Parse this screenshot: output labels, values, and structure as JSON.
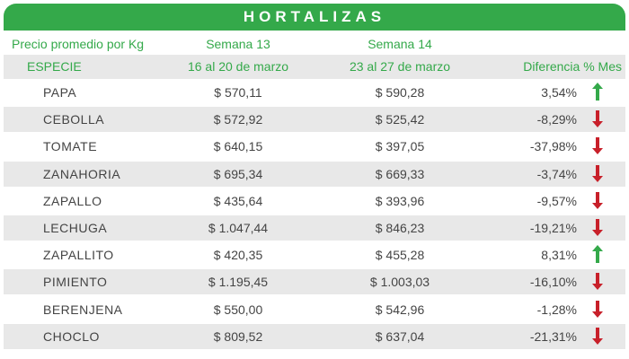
{
  "title": "HORTALIZAS",
  "subheader": {
    "label": "Precio promedio por Kg",
    "week1": "Semana 13",
    "week2": "Semana 14"
  },
  "columns": {
    "species": "ESPECIE",
    "week1_range": "16 al 20 de marzo",
    "week2_range": "23 al 27 de marzo",
    "diff": "Diferencia % Mes"
  },
  "colors": {
    "accent": "#34a94a",
    "up": "#34a94a",
    "down": "#c8202a",
    "row_alt": "#e8e8e8"
  },
  "rows": [
    {
      "species": "PAPA",
      "w13": "$ 570,11",
      "w14": "$ 590,28",
      "diff": "3,54%",
      "trend": "up"
    },
    {
      "species": "CEBOLLA",
      "w13": "$ 572,92",
      "w14": "$ 525,42",
      "diff": "-8,29%",
      "trend": "down"
    },
    {
      "species": "TOMATE",
      "w13": "$ 640,15",
      "w14": "$ 397,05",
      "diff": "-37,98%",
      "trend": "down"
    },
    {
      "species": "ZANAHORIA",
      "w13": "$ 695,34",
      "w14": "$ 669,33",
      "diff": "-3,74%",
      "trend": "down"
    },
    {
      "species": "ZAPALLO",
      "w13": "$ 435,64",
      "w14": "$ 393,96",
      "diff": "-9,57%",
      "trend": "down"
    },
    {
      "species": "LECHUGA",
      "w13": "$ 1.047,44",
      "w14": "$ 846,23",
      "diff": "-19,21%",
      "trend": "down"
    },
    {
      "species": "ZAPALLITO",
      "w13": "$ 420,35",
      "w14": "$ 455,28",
      "diff": "8,31%",
      "trend": "up"
    },
    {
      "species": "PIMIENTO",
      "w13": "$ 1.195,45",
      "w14": "$ 1.003,03",
      "diff": "-16,10%",
      "trend": "down"
    },
    {
      "species": "BERENJENA",
      "w13": "$ 550,00",
      "w14": "$ 542,96",
      "diff": "-1,28%",
      "trend": "down"
    },
    {
      "species": "CHOCLO",
      "w13": "$ 809,52",
      "w14": "$ 637,04",
      "diff": "-21,31%",
      "trend": "down"
    }
  ]
}
